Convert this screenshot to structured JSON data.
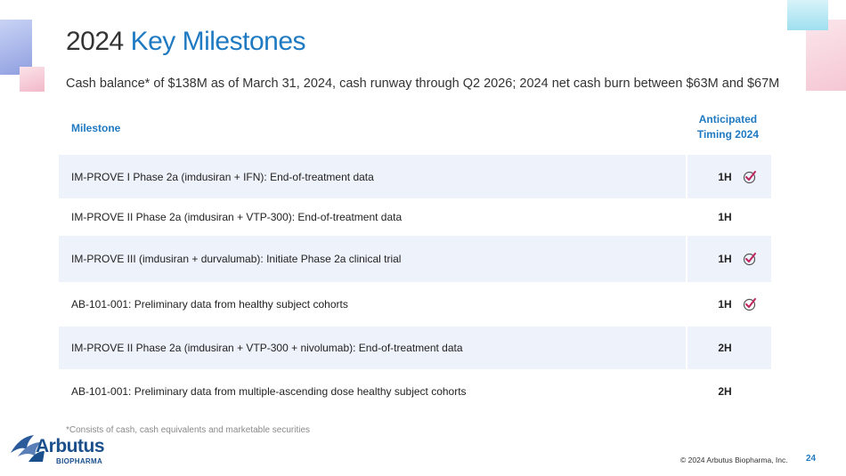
{
  "title": {
    "prefix": "2024 ",
    "accent": "Key Milestones"
  },
  "subtitle": "Cash balance* of $138M as of March 31, 2024, cash runway through Q2 2026; 2024 net cash burn between $63M and $67M",
  "table": {
    "headers": {
      "milestone": "Milestone",
      "timing_line1": "Anticipated",
      "timing_line2": "Timing 2024"
    },
    "rows": [
      {
        "milestone": "IM-PROVE I Phase 2a (imdusiran + IFN):  End-of-treatment data",
        "timing": "1H",
        "completed": true
      },
      {
        "milestone": "IM-PROVE II Phase 2a (imdusiran + VTP-300):  End-of-treatment data",
        "timing": "1H",
        "completed": false
      },
      {
        "milestone": "IM-PROVE III (imdusiran + durvalumab):  Initiate Phase 2a clinical trial",
        "timing": "1H",
        "completed": true
      },
      {
        "milestone": "AB-101-001: Preliminary data from healthy subject cohorts",
        "timing": "1H",
        "completed": true
      },
      {
        "milestone": "IM-PROVE II Phase 2a (imdusiran + VTP-300 + nivolumab):  End-of-treatment data",
        "timing": "2H",
        "completed": false
      },
      {
        "milestone": "AB-101-001: Preliminary data from multiple-ascending dose healthy subject cohorts",
        "timing": "2H",
        "completed": false
      }
    ]
  },
  "footnote": "*Consists of cash, cash equivalents and marketable securities",
  "logo": {
    "name": "Arbutus",
    "sub": "BIOPHARMA"
  },
  "copyright": "© 2024 Arbutus Biopharma, Inc.",
  "page_number": "24",
  "colors": {
    "accent": "#1f7ac2",
    "row_shade": "#eef2fa",
    "check": "#c0245c",
    "logo": "#1a4f8c"
  }
}
